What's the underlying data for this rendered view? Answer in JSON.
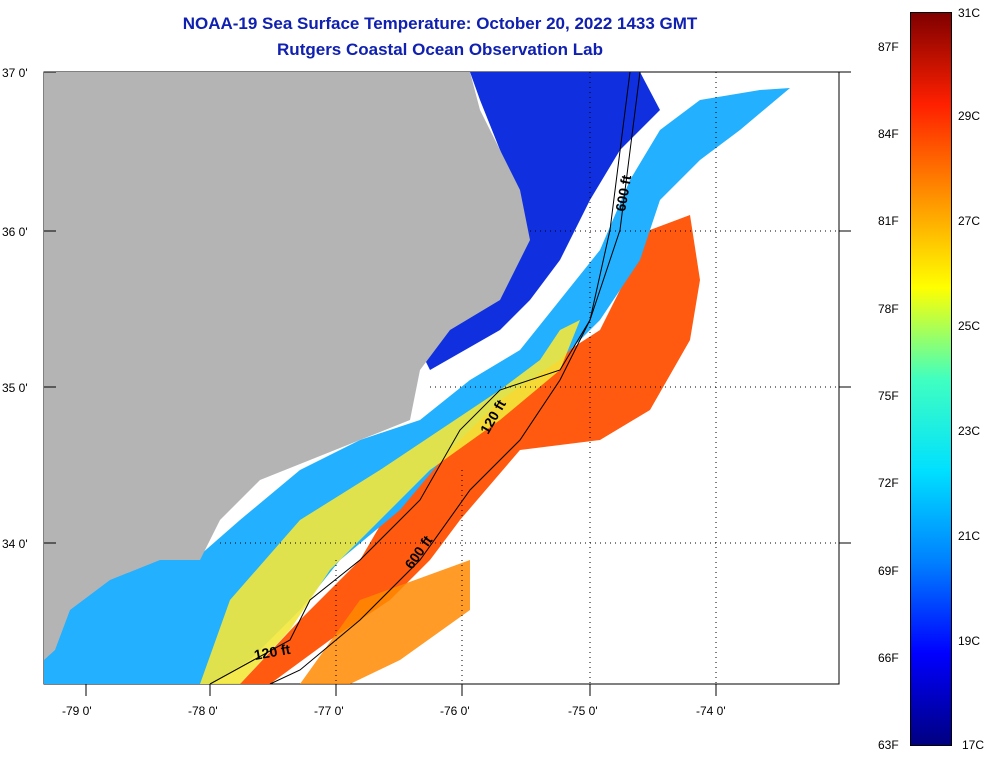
{
  "header": {
    "title": "NOAA-19 Sea Surface Temperature:  October 20, 2022 1433 GMT",
    "subtitle": "Rutgers Coastal Ocean Observation Lab"
  },
  "axes": {
    "lat_labels": [
      "37 0'",
      "36 0'",
      "35 0'",
      "34 0'"
    ],
    "lon_labels": [
      "-79 0'",
      "-78 0'",
      "-77 0'",
      "-76 0'",
      "-75 0'",
      "-74 0'"
    ]
  },
  "isobaths": [
    "600 ft",
    "120 ft",
    "120 ft",
    "600 ft"
  ],
  "colorbar": {
    "fahrenheit": [
      "87F",
      "84F",
      "81F",
      "78F",
      "75F",
      "72F",
      "69F",
      "66F",
      "63F"
    ],
    "celsius": [
      "31C",
      "29C",
      "27C",
      "25C",
      "23C",
      "21C",
      "19C",
      "17C"
    ],
    "colors": [
      "#000080",
      "#0000ff",
      "#0080ff",
      "#00e0ff",
      "#40ffc0",
      "#ffff00",
      "#ff9000",
      "#ff2000",
      "#800000"
    ]
  },
  "land_color": "#b4b4b4"
}
